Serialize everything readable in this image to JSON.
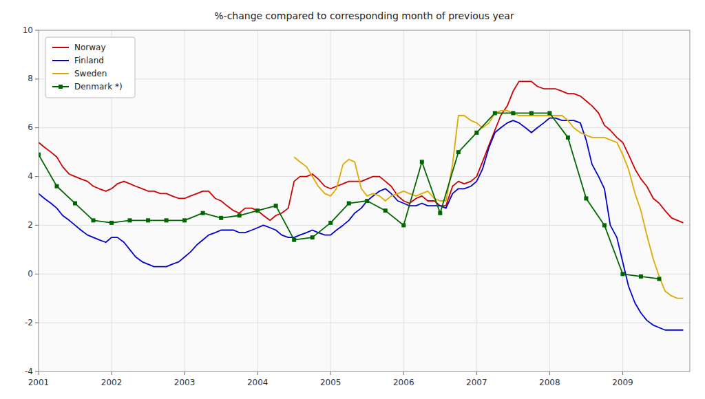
{
  "chart_data": {
    "type": "line",
    "title": "%-change compared to corresponding month of previous year",
    "xlim": [
      2001.0,
      2009.92
    ],
    "xticks": [
      2001,
      2002,
      2003,
      2004,
      2005,
      2006,
      2007,
      2008,
      2009
    ],
    "ylim": [
      -4,
      10
    ],
    "yticks": [
      -4,
      -2,
      0,
      2,
      4,
      6,
      8,
      10
    ],
    "grid": true,
    "legend": "upper left",
    "series": [
      {
        "name": "Norway",
        "color": "#cc0000",
        "x": [
          2001.0,
          2001.08,
          2001.17,
          2001.25,
          2001.33,
          2001.42,
          2001.5,
          2001.58,
          2001.67,
          2001.75,
          2001.83,
          2001.92,
          2002.0,
          2002.08,
          2002.17,
          2002.25,
          2002.33,
          2002.42,
          2002.5,
          2002.58,
          2002.67,
          2002.75,
          2002.83,
          2002.92,
          2003.0,
          2003.08,
          2003.17,
          2003.25,
          2003.33,
          2003.42,
          2003.5,
          2003.58,
          2003.67,
          2003.75,
          2003.83,
          2003.92,
          2004.0,
          2004.08,
          2004.17,
          2004.25,
          2004.33,
          2004.42,
          2004.5,
          2004.58,
          2004.67,
          2004.75,
          2004.83,
          2004.92,
          2005.0,
          2005.08,
          2005.17,
          2005.25,
          2005.33,
          2005.42,
          2005.5,
          2005.58,
          2005.67,
          2005.75,
          2005.83,
          2005.92,
          2006.0,
          2006.08,
          2006.17,
          2006.25,
          2006.33,
          2006.42,
          2006.5,
          2006.58,
          2006.67,
          2006.75,
          2006.83,
          2006.92,
          2007.0,
          2007.08,
          2007.17,
          2007.25,
          2007.33,
          2007.42,
          2007.5,
          2007.58,
          2007.67,
          2007.75,
          2007.83,
          2007.92,
          2008.0,
          2008.08,
          2008.17,
          2008.25,
          2008.33,
          2008.42,
          2008.5,
          2008.58,
          2008.67,
          2008.75,
          2008.83,
          2008.92,
          2009.0,
          2009.08,
          2009.17,
          2009.25,
          2009.33,
          2009.42,
          2009.5,
          2009.58,
          2009.67,
          2009.75,
          2009.83
        ],
        "values": [
          5.4,
          5.2,
          5.0,
          4.8,
          4.4,
          4.1,
          4.0,
          3.9,
          3.8,
          3.6,
          3.5,
          3.4,
          3.5,
          3.7,
          3.8,
          3.7,
          3.6,
          3.5,
          3.4,
          3.4,
          3.3,
          3.3,
          3.2,
          3.1,
          3.1,
          3.2,
          3.3,
          3.4,
          3.4,
          3.1,
          3.0,
          2.8,
          2.6,
          2.5,
          2.7,
          2.7,
          2.6,
          2.4,
          2.2,
          2.4,
          2.5,
          2.7,
          3.8,
          4.0,
          4.0,
          4.1,
          3.9,
          3.6,
          3.5,
          3.6,
          3.7,
          3.8,
          3.8,
          3.8,
          3.9,
          4.0,
          4.0,
          3.8,
          3.6,
          3.2,
          3.0,
          2.9,
          3.1,
          3.2,
          3.0,
          3.0,
          2.8,
          2.8,
          3.6,
          3.8,
          3.7,
          3.8,
          4.0,
          4.6,
          5.3,
          5.9,
          6.5,
          6.9,
          7.5,
          7.9,
          7.9,
          7.9,
          7.7,
          7.6,
          7.6,
          7.6,
          7.5,
          7.4,
          7.4,
          7.3,
          7.1,
          6.9,
          6.6,
          6.1,
          5.9,
          5.6,
          5.4,
          4.9,
          4.3,
          3.9,
          3.6,
          3.1,
          2.9,
          2.6,
          2.3,
          2.2,
          2.1
        ]
      },
      {
        "name": "Finland",
        "color": "#0000cc",
        "x": [
          2001.0,
          2001.08,
          2001.17,
          2001.25,
          2001.33,
          2001.42,
          2001.5,
          2001.58,
          2001.67,
          2001.75,
          2001.83,
          2001.92,
          2002.0,
          2002.08,
          2002.17,
          2002.25,
          2002.33,
          2002.42,
          2002.5,
          2002.58,
          2002.67,
          2002.75,
          2002.83,
          2002.92,
          2003.0,
          2003.08,
          2003.17,
          2003.25,
          2003.33,
          2003.42,
          2003.5,
          2003.58,
          2003.67,
          2003.75,
          2003.83,
          2003.92,
          2004.0,
          2004.08,
          2004.17,
          2004.25,
          2004.33,
          2004.42,
          2004.5,
          2004.58,
          2004.67,
          2004.75,
          2004.83,
          2004.92,
          2005.0,
          2005.08,
          2005.17,
          2005.25,
          2005.33,
          2005.42,
          2005.5,
          2005.58,
          2005.67,
          2005.75,
          2005.83,
          2005.92,
          2006.0,
          2006.08,
          2006.17,
          2006.25,
          2006.33,
          2006.42,
          2006.5,
          2006.58,
          2006.67,
          2006.75,
          2006.83,
          2006.92,
          2007.0,
          2007.08,
          2007.17,
          2007.25,
          2007.33,
          2007.42,
          2007.5,
          2007.58,
          2007.67,
          2007.75,
          2007.83,
          2007.92,
          2008.0,
          2008.08,
          2008.17,
          2008.25,
          2008.33,
          2008.42,
          2008.5,
          2008.58,
          2008.67,
          2008.75,
          2008.83,
          2008.92,
          2009.0,
          2009.08,
          2009.17,
          2009.25,
          2009.33,
          2009.42,
          2009.5,
          2009.58,
          2009.67,
          2009.75,
          2009.83
        ],
        "values": [
          3.3,
          3.1,
          2.9,
          2.7,
          2.4,
          2.2,
          2.0,
          1.8,
          1.6,
          1.5,
          1.4,
          1.3,
          1.5,
          1.5,
          1.3,
          1.0,
          0.7,
          0.5,
          0.4,
          0.3,
          0.3,
          0.3,
          0.4,
          0.5,
          0.7,
          0.9,
          1.2,
          1.4,
          1.6,
          1.7,
          1.8,
          1.8,
          1.8,
          1.7,
          1.7,
          1.8,
          1.9,
          2.0,
          1.9,
          1.8,
          1.6,
          1.5,
          1.5,
          1.6,
          1.7,
          1.8,
          1.7,
          1.6,
          1.6,
          1.8,
          2.0,
          2.2,
          2.5,
          2.7,
          3.0,
          3.2,
          3.4,
          3.5,
          3.3,
          3.0,
          2.9,
          2.8,
          2.8,
          2.9,
          2.8,
          2.8,
          2.8,
          2.7,
          3.3,
          3.5,
          3.5,
          3.6,
          3.8,
          4.3,
          5.2,
          5.8,
          6.0,
          6.2,
          6.3,
          6.2,
          6.0,
          5.8,
          6.0,
          6.2,
          6.4,
          6.4,
          6.3,
          6.3,
          6.3,
          6.2,
          5.5,
          4.5,
          4.0,
          3.5,
          2.0,
          1.5,
          0.5,
          -0.5,
          -1.2,
          -1.6,
          -1.9,
          -2.1,
          -2.2,
          -2.3,
          -2.3,
          -2.3,
          -2.3
        ]
      },
      {
        "name": "Sweden",
        "color": "#ddaa00",
        "x": [
          2004.5,
          2004.58,
          2004.67,
          2004.75,
          2004.83,
          2004.92,
          2005.0,
          2005.08,
          2005.17,
          2005.25,
          2005.33,
          2005.42,
          2005.5,
          2005.58,
          2005.67,
          2005.75,
          2005.83,
          2005.92,
          2006.0,
          2006.08,
          2006.17,
          2006.25,
          2006.33,
          2006.42,
          2006.5,
          2006.58,
          2006.67,
          2006.75,
          2006.83,
          2006.92,
          2007.0,
          2007.08,
          2007.17,
          2007.25,
          2007.33,
          2007.42,
          2007.5,
          2007.58,
          2007.67,
          2007.75,
          2007.83,
          2007.92,
          2008.0,
          2008.08,
          2008.17,
          2008.25,
          2008.33,
          2008.42,
          2008.5,
          2008.58,
          2008.67,
          2008.75,
          2008.83,
          2008.92,
          2009.0,
          2009.08,
          2009.17,
          2009.25,
          2009.33,
          2009.42,
          2009.5,
          2009.58,
          2009.67,
          2009.75,
          2009.83
        ],
        "values": [
          4.8,
          4.6,
          4.4,
          4.0,
          3.6,
          3.3,
          3.2,
          3.5,
          4.5,
          4.7,
          4.6,
          3.5,
          3.2,
          3.3,
          3.2,
          3.0,
          3.2,
          3.3,
          3.4,
          3.3,
          3.2,
          3.3,
          3.4,
          3.1,
          3.0,
          3.0,
          4.5,
          6.5,
          6.5,
          6.3,
          6.2,
          6.0,
          6.2,
          6.6,
          6.7,
          6.7,
          6.6,
          6.5,
          6.5,
          6.5,
          6.5,
          6.5,
          6.5,
          6.5,
          6.5,
          6.3,
          6.0,
          5.8,
          5.7,
          5.6,
          5.6,
          5.6,
          5.5,
          5.4,
          4.9,
          4.3,
          3.3,
          2.6,
          1.6,
          0.6,
          -0.1,
          -0.7,
          -0.9,
          -1.0,
          -1.0
        ]
      },
      {
        "name": "Denmark *)",
        "color": "#006600",
        "marker": "square",
        "x": [
          2001.0,
          2001.25,
          2001.5,
          2001.75,
          2002.0,
          2002.25,
          2002.5,
          2002.75,
          2003.0,
          2003.25,
          2003.5,
          2003.75,
          2004.0,
          2004.25,
          2004.5,
          2004.75,
          2005.0,
          2005.25,
          2005.5,
          2005.75,
          2006.0,
          2006.25,
          2006.5,
          2006.75,
          2007.0,
          2007.25,
          2007.5,
          2007.75,
          2008.0,
          2008.25,
          2008.5,
          2008.75,
          2009.0,
          2009.25,
          2009.5
        ],
        "values": [
          4.9,
          3.6,
          2.9,
          2.2,
          2.1,
          2.2,
          2.2,
          2.2,
          2.2,
          2.5,
          2.3,
          2.4,
          2.6,
          2.8,
          1.4,
          1.5,
          2.1,
          2.9,
          3.0,
          2.6,
          2.0,
          4.6,
          2.5,
          5.0,
          5.8,
          6.6,
          6.6,
          6.6,
          6.6,
          5.6,
          3.1,
          2.0,
          0.0,
          -0.1,
          -0.2
        ]
      }
    ]
  }
}
